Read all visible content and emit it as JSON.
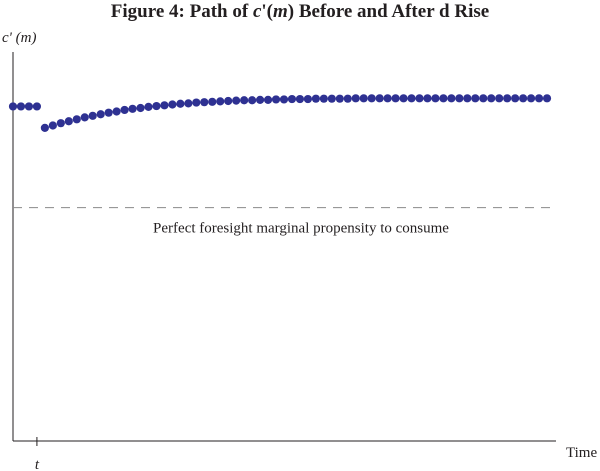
{
  "chart_data": {
    "type": "scatter",
    "title": "Figure 4:  Path of c'(m) Before and After d Rise",
    "title_parts": {
      "prefix": "Figure 4:  Path of ",
      "func": "c",
      "prime_arg": "'(",
      "var": "m",
      "suffix": ") Before and After d Rise"
    },
    "xlabel": "Time",
    "ylabel": "c' (m)",
    "ylabel_parts": {
      "func": "c' (",
      "var": "m",
      "close": ")"
    },
    "x_tick_label": "t",
    "x_tick_value": 0,
    "xlim": [
      -3,
      65
    ],
    "ylim": [
      0,
      1
    ],
    "annotation": "Perfect foresight marginal propensity to consume",
    "reference_line": {
      "y": 0.6,
      "style": "dashed"
    },
    "series": [
      {
        "before_shock": {
          "x": [
            -3,
            -2,
            -1,
            0
          ],
          "y": [
            0.86,
            0.86,
            0.86,
            0.86
          ]
        },
        "after_shock": {
          "x": [
            1,
            2,
            3,
            4,
            5,
            6,
            7,
            8,
            9,
            10,
            11,
            12,
            13,
            14,
            15,
            16,
            17,
            18,
            19,
            20,
            21,
            22,
            23,
            24,
            25,
            26,
            27,
            28,
            29,
            30,
            31,
            32,
            33,
            34,
            35,
            36,
            37,
            38,
            39,
            40,
            41,
            42,
            43,
            44,
            45,
            46,
            47,
            48,
            49,
            50,
            51,
            52,
            53,
            54,
            55,
            56,
            57,
            58,
            59,
            60,
            61,
            62,
            63,
            64
          ],
          "y": [
            0.805,
            0.811,
            0.817,
            0.822,
            0.827,
            0.832,
            0.836,
            0.84,
            0.844,
            0.847,
            0.851,
            0.854,
            0.856,
            0.859,
            0.861,
            0.863,
            0.865,
            0.867,
            0.868,
            0.87,
            0.871,
            0.872,
            0.873,
            0.874,
            0.875,
            0.876,
            0.876,
            0.877,
            0.877,
            0.878,
            0.878,
            0.879,
            0.879,
            0.879,
            0.88,
            0.88,
            0.88,
            0.88,
            0.88,
            0.881,
            0.881,
            0.881,
            0.881,
            0.881,
            0.881,
            0.881,
            0.881,
            0.881,
            0.881,
            0.881,
            0.881,
            0.881,
            0.881,
            0.881,
            0.881,
            0.881,
            0.881,
            0.881,
            0.881,
            0.881,
            0.881,
            0.881,
            0.881,
            0.881
          ]
        }
      }
    ],
    "point_color": "#2e3192",
    "axis_color": "#231f20",
    "reference_line_color": "#8a8a8a"
  }
}
